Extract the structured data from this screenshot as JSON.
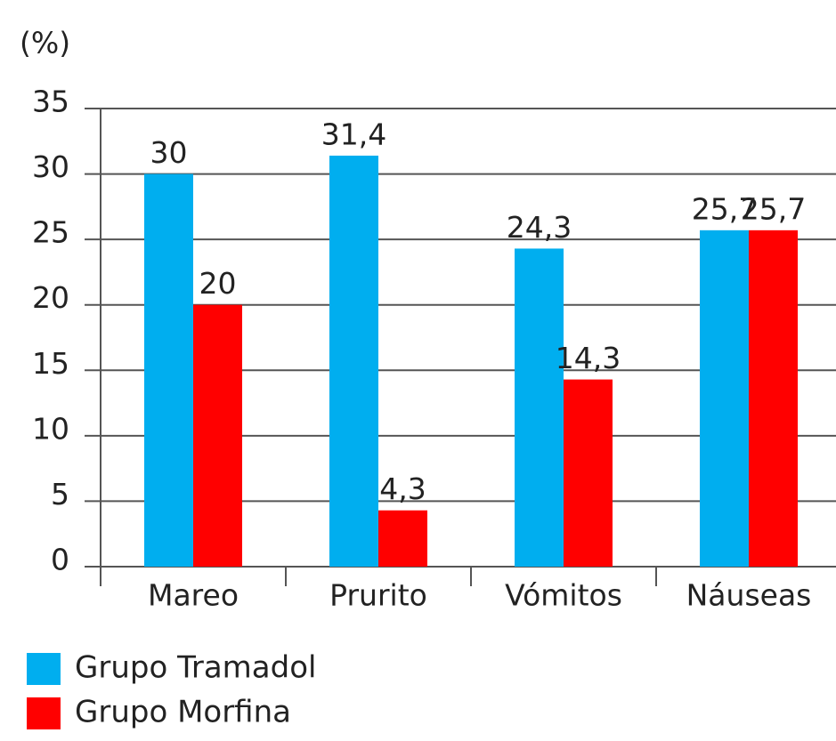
{
  "chart_data": {
    "type": "bar",
    "y_label": "(%)",
    "categories": [
      "Mareo",
      "Prurito",
      "Vómitos",
      "Náuseas"
    ],
    "series": [
      {
        "name": "Grupo Tramadol",
        "color": "#00aeef",
        "values": [
          30,
          31.4,
          24.3,
          25.7
        ],
        "value_labels": [
          "30",
          "31,4",
          "24,3",
          "25,7"
        ]
      },
      {
        "name": "Grupo Morfina",
        "color": "#ff0000",
        "values": [
          20,
          4.3,
          14.3,
          25.7
        ],
        "value_labels": [
          "20",
          "4,3",
          "14,3",
          "25,7"
        ]
      }
    ],
    "ylim": [
      0,
      35
    ],
    "yticks": [
      0,
      5,
      10,
      15,
      20,
      25,
      30,
      35
    ],
    "grid": true
  }
}
